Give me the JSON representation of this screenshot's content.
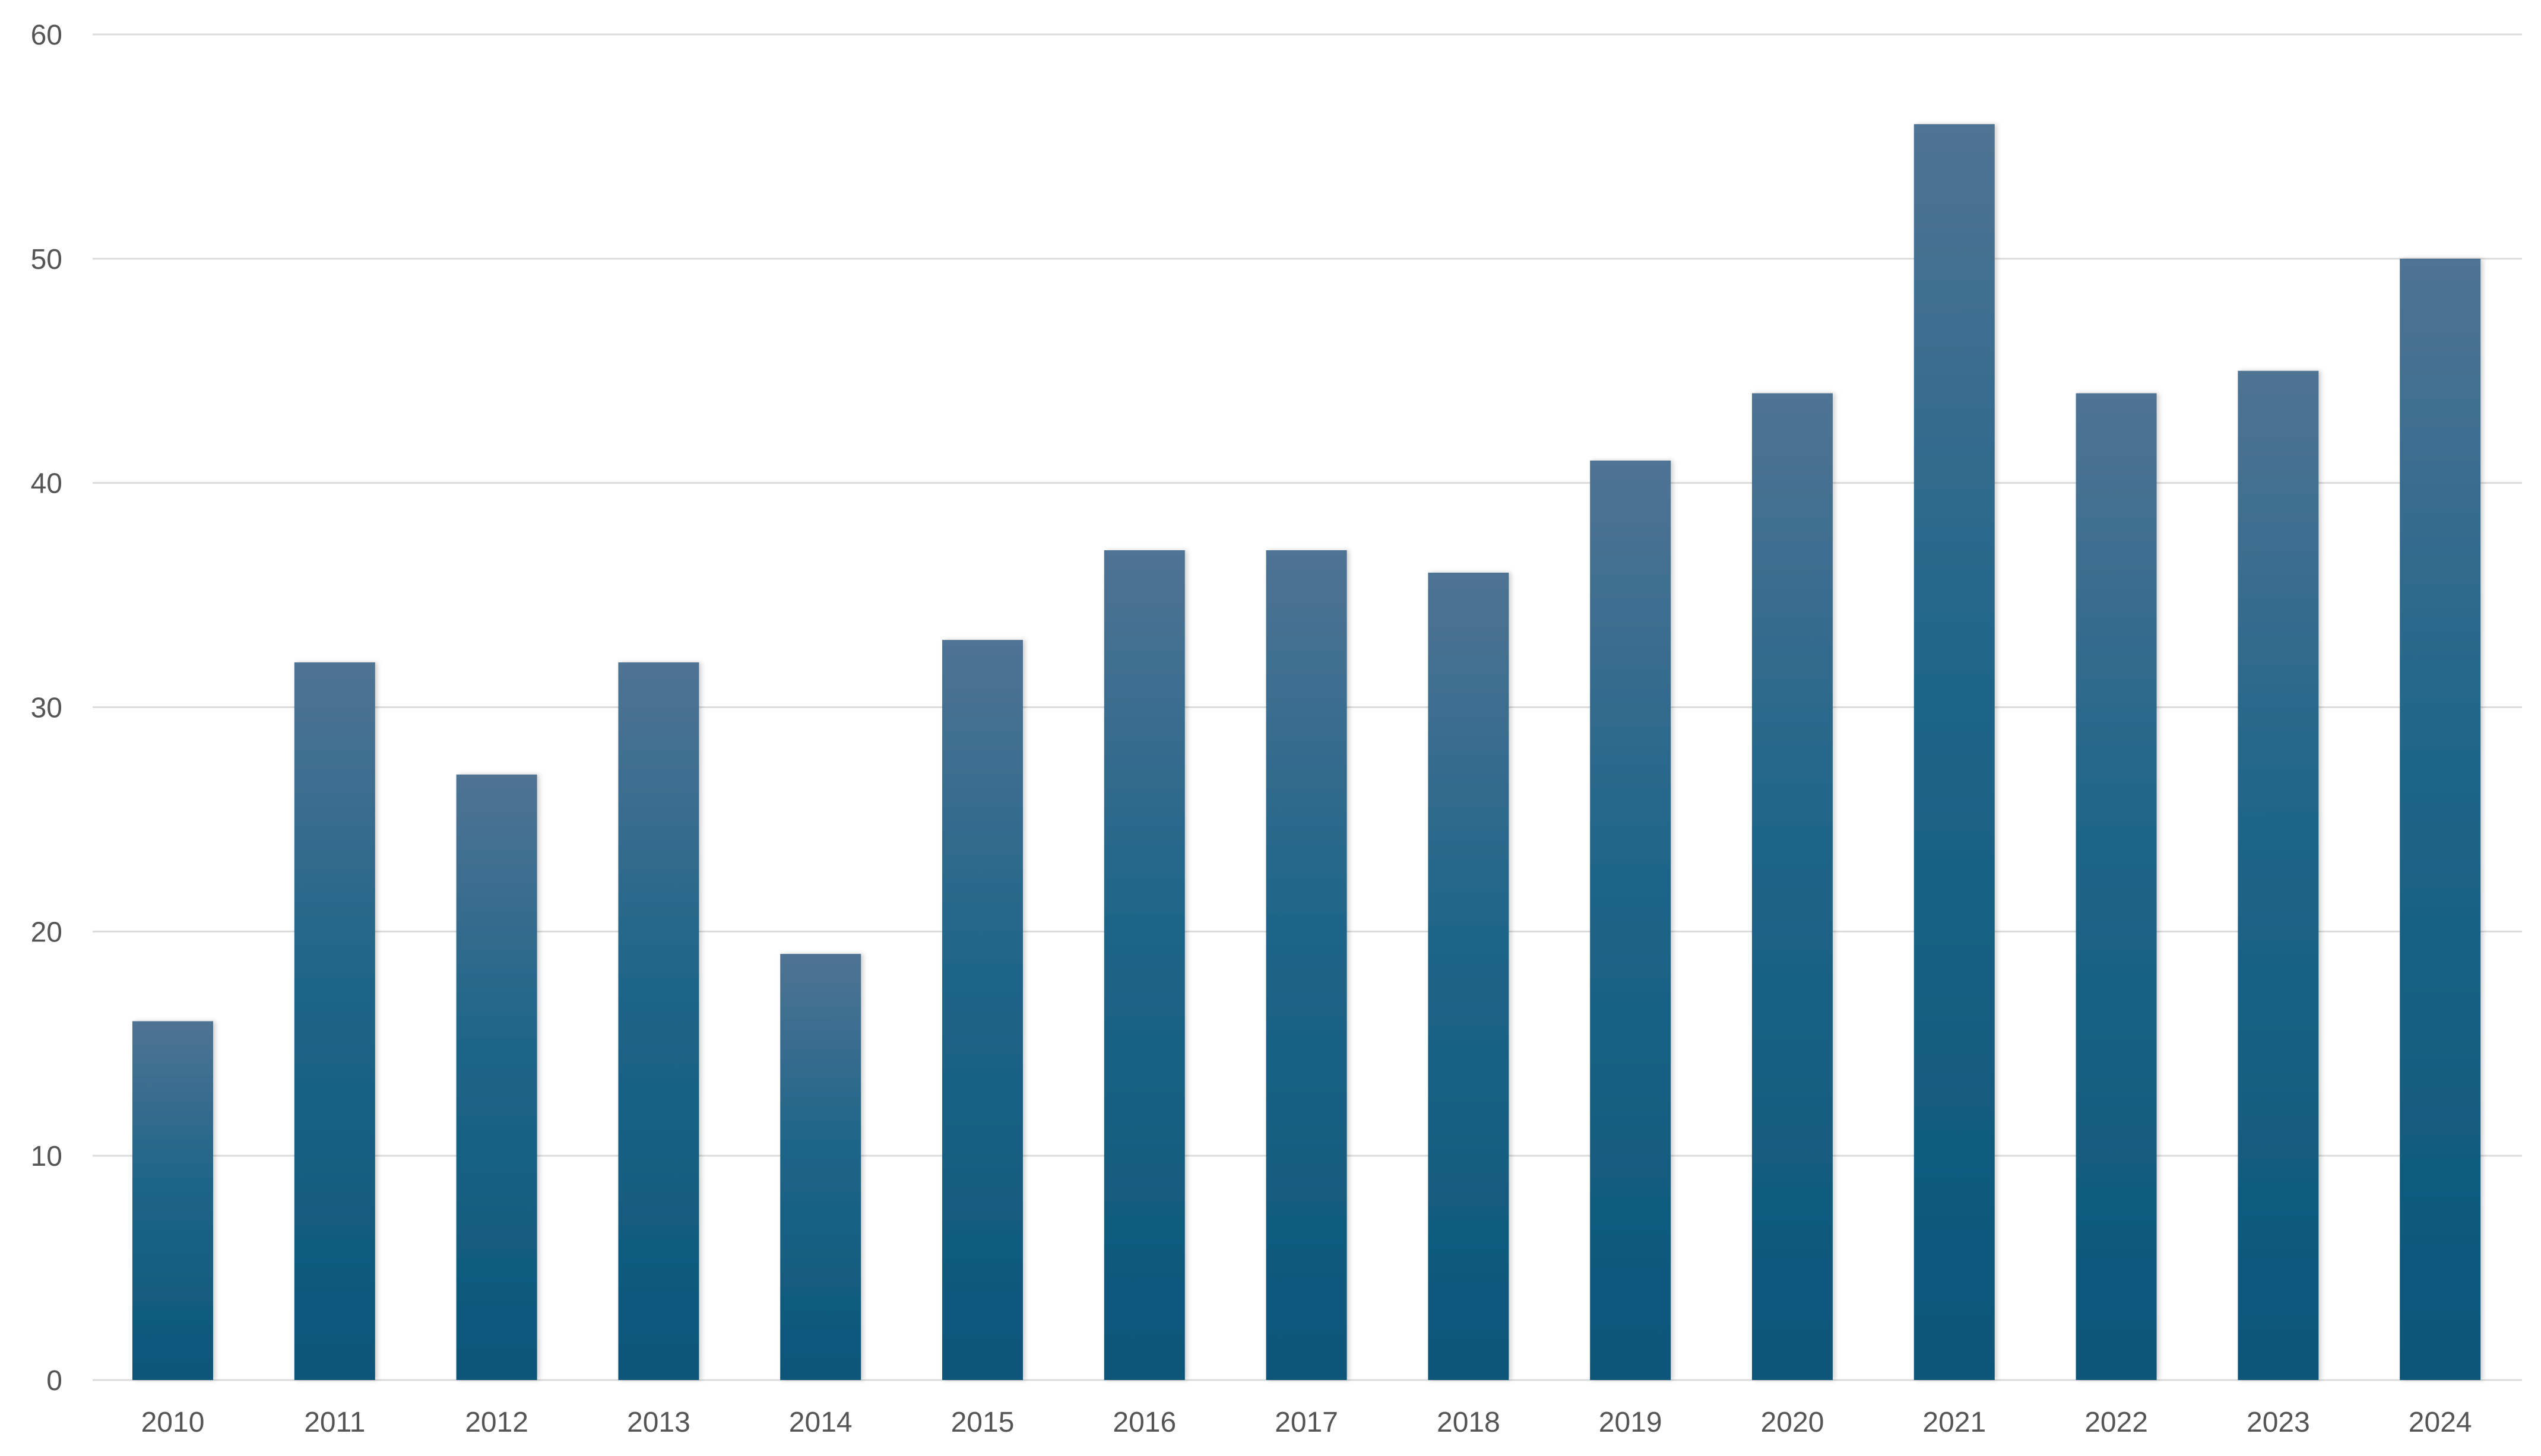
{
  "chart_data": {
    "type": "bar",
    "title": "",
    "xlabel": "",
    "ylabel": "",
    "categories": [
      "2010",
      "2011",
      "2012",
      "2013",
      "2014",
      "2015",
      "2016",
      "2017",
      "2018",
      "2019",
      "2020",
      "2021",
      "2022",
      "2023",
      "2024"
    ],
    "values": [
      16,
      32,
      27,
      32,
      19,
      33,
      37,
      37,
      36,
      41,
      44,
      56,
      44,
      45,
      50
    ],
    "ylim": [
      0,
      60
    ],
    "yticks": [
      0,
      10,
      20,
      30,
      40,
      50,
      60
    ],
    "grid": true,
    "legend": "none",
    "colors": {
      "bar_top": "#4f7393",
      "bar_mid": "#1e6588",
      "bar_bottom": "#0a5679",
      "grid": "#dcdcdc",
      "axis_text": "#555555"
    }
  }
}
